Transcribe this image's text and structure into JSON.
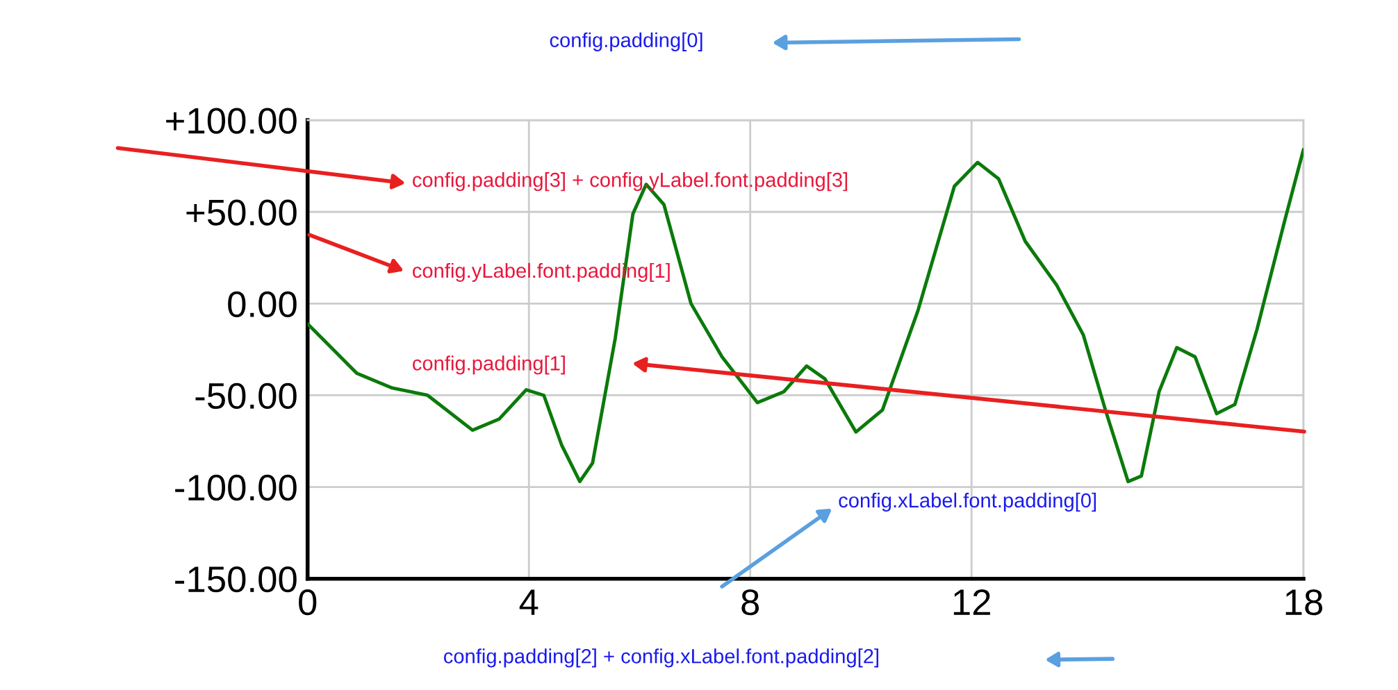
{
  "chart_data": {
    "type": "line",
    "xlim": [
      0,
      18
    ],
    "xticks": [
      0,
      4,
      8,
      12,
      18
    ],
    "ylim": [
      -150,
      100
    ],
    "yticks": [
      {
        "value": 100,
        "label": "+100.00"
      },
      {
        "value": 50,
        "label": "+50.00"
      },
      {
        "value": 0,
        "label": "0.00"
      },
      {
        "value": -50,
        "label": "-50.00"
      },
      {
        "value": -100,
        "label": "-100.00"
      },
      {
        "value": -150,
        "label": "-150.00"
      }
    ],
    "grid": true,
    "marker": "none",
    "line_style": "solid",
    "series": [
      {
        "color": "#0b7a0b",
        "x": [
          0,
          0.89,
          1.53,
          2.17,
          2.98,
          3.46,
          3.95,
          4.27,
          4.59,
          4.92,
          5.15,
          5.56,
          5.88,
          6.12,
          6.44,
          6.93,
          7.49,
          8.13,
          8.61,
          9.02,
          9.35,
          9.91,
          10.39,
          11.03,
          11.69,
          12.11,
          12.49,
          12.97,
          13.54,
          14.02,
          14.42,
          14.83,
          15.07,
          15.39,
          15.71,
          16.04,
          16.43,
          16.76,
          17.16,
          17.65,
          18
        ],
        "values": [
          -11,
          -38,
          -46,
          -50,
          -69,
          -63,
          -47,
          -50,
          -77,
          -97,
          -87,
          -19,
          49,
          65,
          54,
          0,
          -29,
          -54,
          -48,
          -34,
          -41,
          -70,
          -58,
          -4,
          64,
          77,
          68,
          34,
          10,
          -17,
          -58,
          -97,
          -94,
          -48,
          -24,
          -29,
          -60,
          -55,
          -14,
          44,
          84
        ]
      }
    ],
    "annotations": [
      "config.padding[0]",
      "config.padding[3] + config.yLabel.font.padding[3]",
      "config.yLabel.font.padding[1]",
      "config.padding[1]",
      "config.xLabel.font.padding[0]",
      "config.padding[2] + config.xLabel.font.padding[2]"
    ]
  }
}
